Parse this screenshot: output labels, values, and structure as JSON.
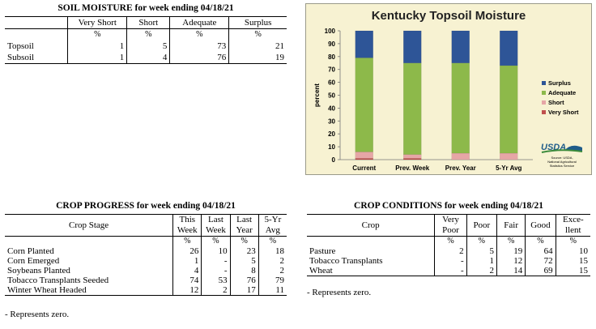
{
  "soil_moisture": {
    "title": "SOIL MOISTURE for week ending 04/18/21",
    "columns": [
      "",
      "Very Short",
      "Short",
      "Adequate",
      "Surplus"
    ],
    "unit_row": [
      "",
      "%",
      "%",
      "%",
      "%"
    ],
    "rows": [
      [
        "Topsoil",
        "1",
        "5",
        "73",
        "21"
      ],
      [
        "Subsoil",
        "1",
        "4",
        "76",
        "19"
      ]
    ]
  },
  "crop_progress": {
    "title": "CROP PROGRESS for week ending 04/18/21",
    "header_stage": "Crop Stage",
    "header_cols": [
      [
        "This",
        "Week"
      ],
      [
        "Last",
        "Week"
      ],
      [
        "Last",
        "Year"
      ],
      [
        "5-Yr",
        "Avg"
      ]
    ],
    "unit_row": [
      "%",
      "%",
      "%",
      "%"
    ],
    "rows": [
      [
        "Corn Planted",
        "26",
        "10",
        "23",
        "18"
      ],
      [
        "Corn Emerged",
        "1",
        "-",
        "5",
        "2"
      ],
      [
        "Soybeans Planted",
        "4",
        "-",
        "8",
        "2"
      ],
      [
        "Tobacco Transplants Seeded",
        "74",
        "53",
        "76",
        "79"
      ],
      [
        "Winter Wheat Headed",
        "12",
        "2",
        "17",
        "11"
      ]
    ],
    "note": "- Represents zero."
  },
  "crop_conditions": {
    "title": "CROP CONDITIONS for week ending 04/18/21",
    "header_crop": "Crop",
    "header_cols": [
      [
        "Very",
        "Poor"
      ],
      [
        "Poor"
      ],
      [
        "Fair"
      ],
      [
        "Good"
      ],
      [
        "Exce-",
        "llent"
      ]
    ],
    "unit_row": [
      "%",
      "%",
      "%",
      "%",
      "%"
    ],
    "rows": [
      [
        "Pasture",
        "2",
        "5",
        "19",
        "64",
        "10"
      ],
      [
        "Tobacco Transplants",
        "-",
        "1",
        "12",
        "72",
        "15"
      ],
      [
        "Wheat",
        "-",
        "2",
        "14",
        "69",
        "15"
      ]
    ],
    "note": "- Represents zero."
  },
  "chart_data": {
    "type": "bar",
    "stacked": true,
    "title": "Kentucky Topsoil Moisture",
    "xlabel": "",
    "ylabel": "percent",
    "ylim": [
      0,
      100
    ],
    "yticks": [
      0,
      10,
      20,
      30,
      40,
      50,
      60,
      70,
      80,
      90,
      100
    ],
    "categories": [
      "Current",
      "Prev. Week",
      "Prev. Year",
      "5-Yr Avg"
    ],
    "series": [
      {
        "name": "Very Short",
        "color": "#c0504d",
        "values": [
          1,
          1,
          0,
          0
        ]
      },
      {
        "name": "Short",
        "color": "#e6a6a6",
        "values": [
          5,
          3,
          5,
          5
        ]
      },
      {
        "name": "Adequate",
        "color": "#8db94a",
        "values": [
          73,
          71,
          70,
          68
        ]
      },
      {
        "name": "Surplus",
        "color": "#2e5597",
        "values": [
          21,
          25,
          25,
          27
        ]
      }
    ],
    "legend_order": [
      "Surplus",
      "Adequate",
      "Short",
      "Very Short"
    ],
    "legend_position": "right",
    "grid": false,
    "source_text": [
      "Source: USDA,",
      "National Agricultural",
      "Statistics Service"
    ],
    "logo_text": "USDA"
  }
}
